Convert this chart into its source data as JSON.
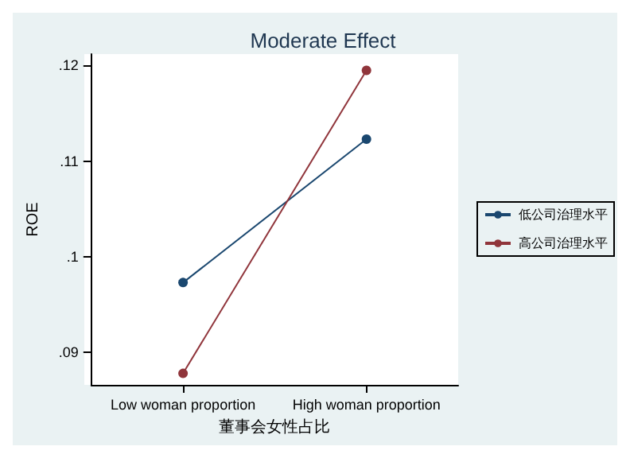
{
  "chart_data": {
    "type": "line",
    "title": "Moderate Effect",
    "xlabel": "董事会女性占比",
    "ylabel": "ROE",
    "categories": [
      "Low woman proportion",
      "High woman proportion"
    ],
    "series": [
      {
        "name": "低公司治理水平",
        "color": "#1a476f",
        "values": [
          0.0973,
          0.1123
        ]
      },
      {
        "name": "高公司治理水平",
        "color": "#90353b",
        "values": [
          0.0878,
          0.1195
        ]
      }
    ],
    "ylim": [
      0.0866,
      0.1212
    ],
    "yticks": [
      {
        "value": 0.09,
        "label": ".09"
      },
      {
        "value": 0.1,
        "label": ".1"
      },
      {
        "value": 0.11,
        "label": ".11"
      },
      {
        "value": 0.12,
        "label": ".12"
      }
    ],
    "grid": false,
    "legend": "right",
    "marker": "circle",
    "line_style": "solid"
  }
}
